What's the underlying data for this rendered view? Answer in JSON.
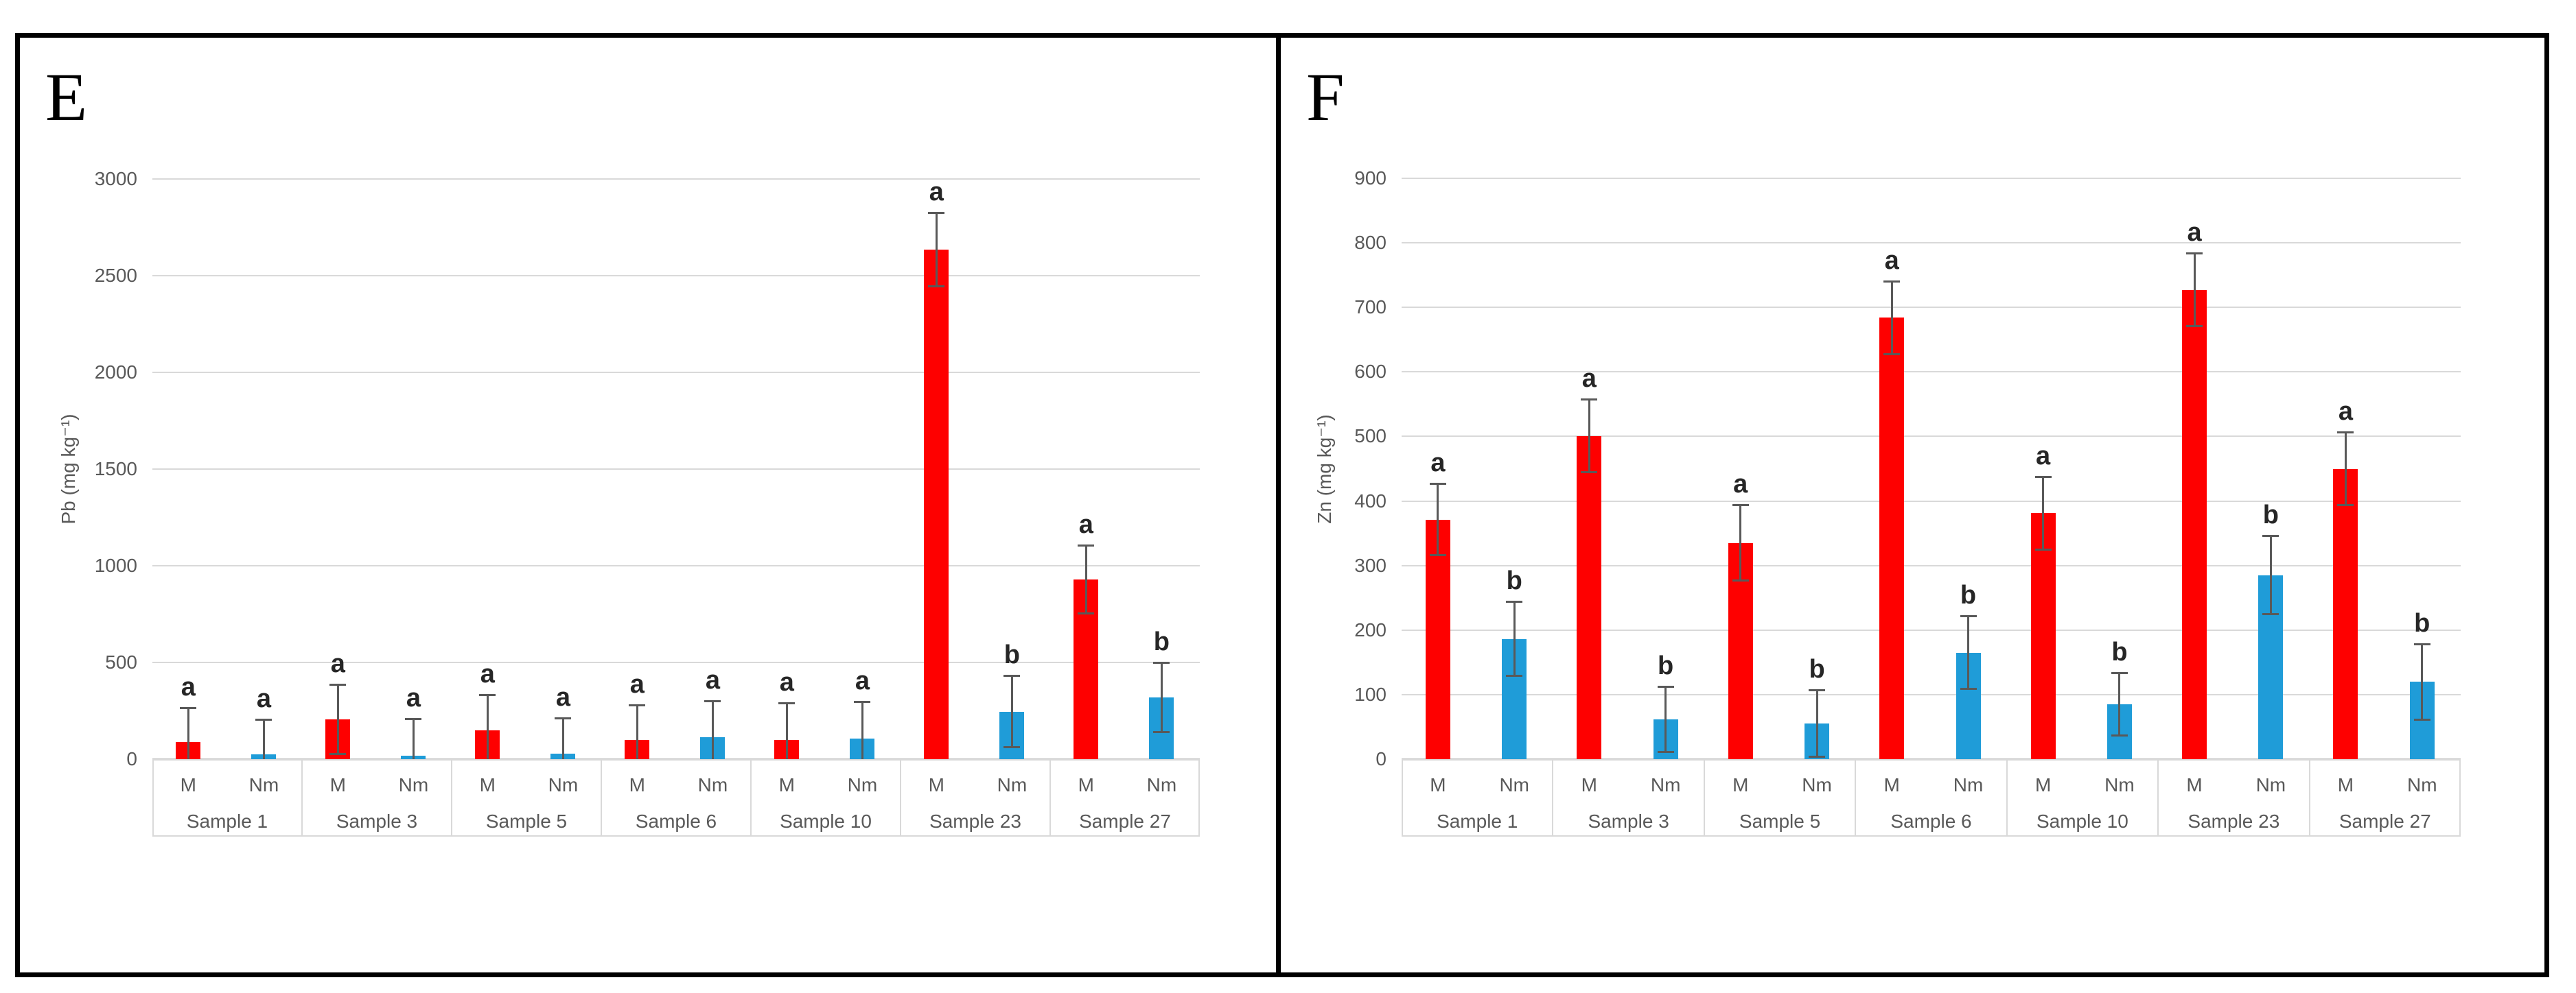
{
  "figure": {
    "panel_letters": [
      "E",
      "F"
    ]
  },
  "colors": {
    "bar_M": "#fe0000",
    "bar_Nm": "#1f9cd8",
    "gridline": "#d9d9d9",
    "axis_line": "#bfbfbf",
    "axis_text": "#595959",
    "error_bar": "#595959",
    "sig_letter": "#262626",
    "frame": "#000000"
  },
  "chart_data": [
    {
      "id": "E",
      "type": "bar",
      "panel_label": "E",
      "title": "",
      "xlabel": "",
      "ylabel": "Pb (mg kg⁻¹)",
      "ylim": [
        0,
        3000
      ],
      "ytick_step": 500,
      "yticks": [
        0,
        500,
        1000,
        1500,
        2000,
        2500,
        3000
      ],
      "grid": true,
      "legend_position": "none",
      "bar_series_labels": [
        "M",
        "Nm"
      ],
      "categories": [
        "Sample 1",
        "Sample 3",
        "Sample 5",
        "Sample 6",
        "Sample 10",
        "Sample 23",
        "Sample 27"
      ],
      "series": [
        {
          "name": "M",
          "color_key": "bar_M",
          "values": [
            90,
            205,
            148,
            100,
            98,
            2635,
            930
          ],
          "errors": [
            180,
            185,
            190,
            185,
            195,
            195,
            180
          ],
          "letters": [
            "a",
            "a",
            "a",
            "a",
            "a",
            "a",
            "a"
          ]
        },
        {
          "name": "Nm",
          "color_key": "bar_Nm",
          "values": [
            25,
            18,
            30,
            114,
            108,
            245,
            320
          ],
          "errors": [
            185,
            195,
            185,
            190,
            195,
            190,
            185
          ],
          "letters": [
            "a",
            "a",
            "a",
            "a",
            "a",
            "b",
            "b"
          ]
        }
      ]
    },
    {
      "id": "F",
      "type": "bar",
      "panel_label": "F",
      "title": "",
      "xlabel": "",
      "ylabel": "Zn (mg kg⁻¹)",
      "ylim": [
        0,
        900
      ],
      "ytick_step": 100,
      "yticks": [
        0,
        100,
        200,
        300,
        400,
        500,
        600,
        700,
        800,
        900
      ],
      "grid": true,
      "legend_position": "none",
      "bar_series_labels": [
        "M",
        "Nm"
      ],
      "categories": [
        "Sample 1",
        "Sample 3",
        "Sample 5",
        "Sample 6",
        "Sample 10",
        "Sample 23",
        "Sample 27"
      ],
      "series": [
        {
          "name": "M",
          "color_key": "bar_M",
          "values": [
            371,
            501,
            335,
            684,
            381,
            727,
            450
          ],
          "errors": [
            57,
            58,
            60,
            58,
            58,
            58,
            58
          ],
          "letters": [
            "a",
            "a",
            "a",
            "a",
            "a",
            "a",
            "a"
          ]
        },
        {
          "name": "Nm",
          "color_key": "bar_Nm",
          "values": [
            186,
            62,
            55,
            165,
            85,
            285,
            120
          ],
          "errors": [
            59,
            52,
            53,
            58,
            50,
            62,
            60
          ],
          "letters": [
            "b",
            "b",
            "b",
            "b",
            "b",
            "b",
            "b"
          ]
        }
      ]
    }
  ]
}
